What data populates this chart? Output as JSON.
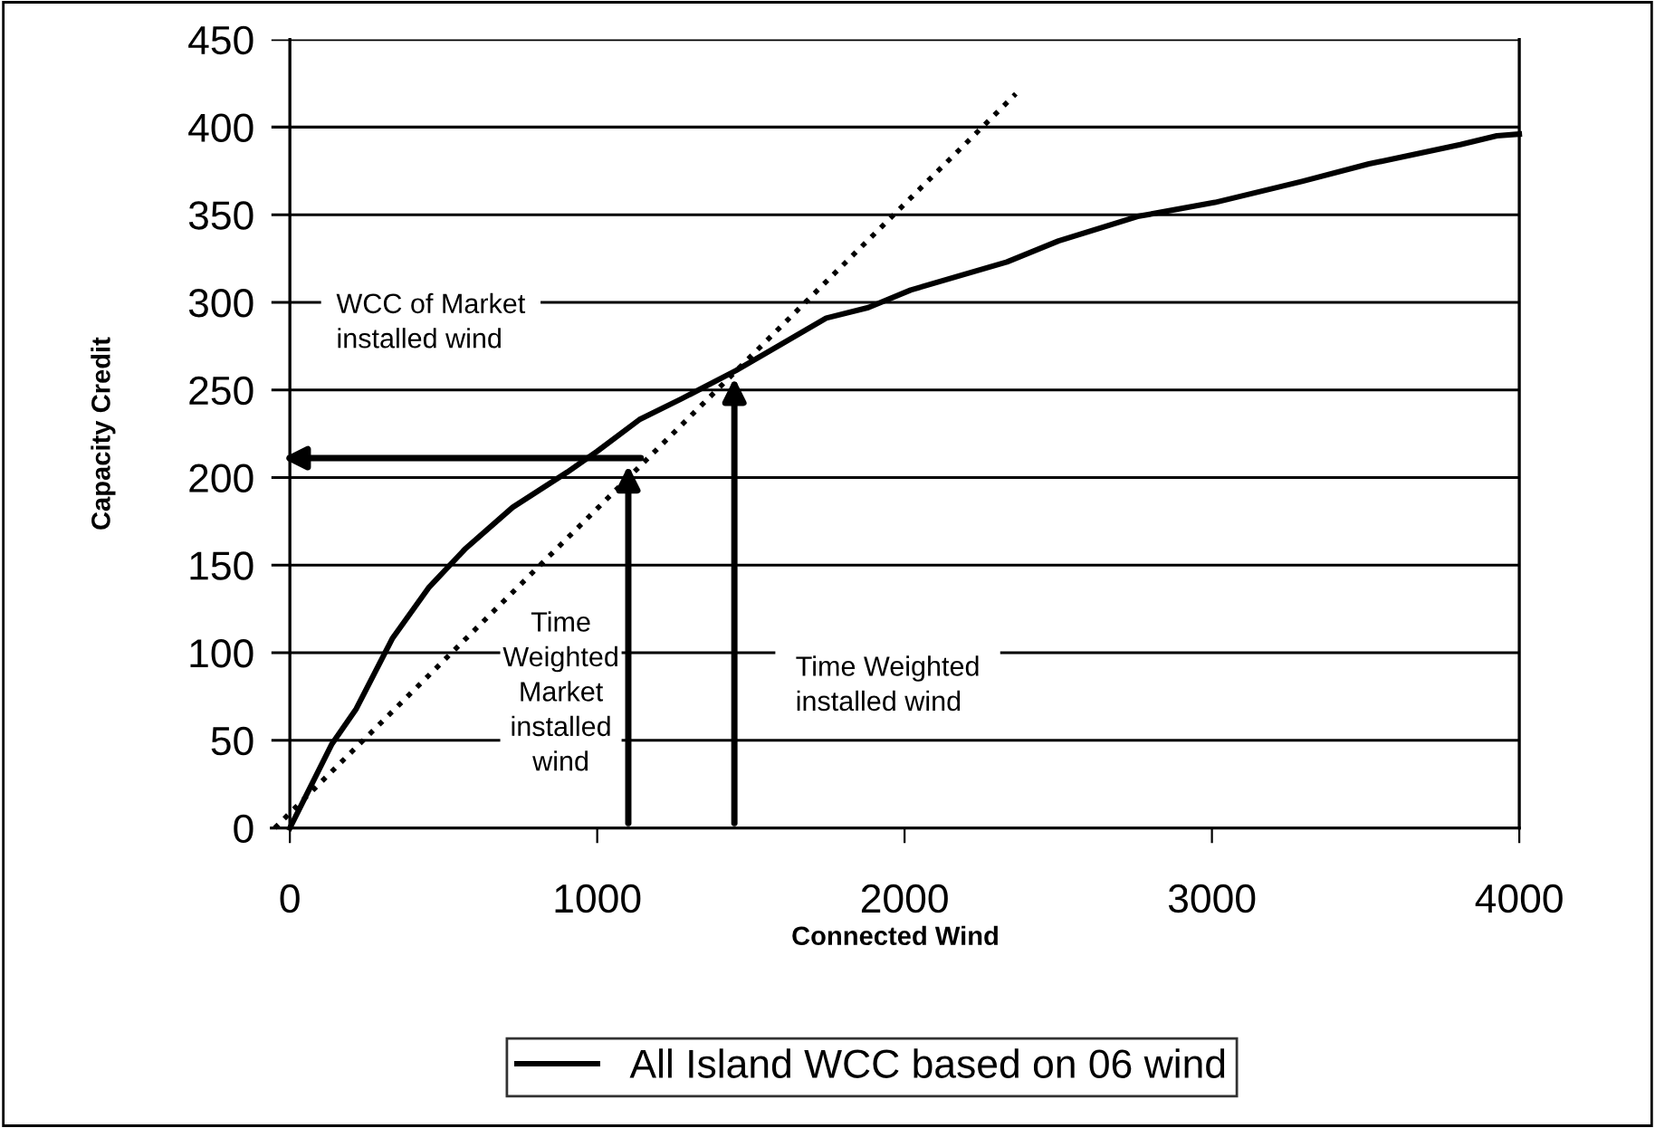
{
  "chart_data": {
    "type": "line",
    "xlabel": "Connected Wind",
    "ylabel": "Capacity Credit",
    "series": [
      {
        "name": "All Island WCC based on 06 wind",
        "color": "#000000",
        "line_style": "solid",
        "x": [
          0,
          137,
          216,
          333,
          451,
          569,
          725,
          902,
          1000,
          1137,
          1275,
          1451,
          1588,
          1745,
          1882,
          2020,
          2176,
          2333,
          2501,
          2758,
          3010,
          3293,
          3511,
          3808,
          3927,
          4000
        ],
        "values": [
          0,
          48,
          68,
          108,
          137,
          159,
          183,
          203,
          215,
          233,
          245,
          261,
          275,
          291,
          297,
          307,
          315,
          323,
          335,
          349,
          357,
          369,
          379,
          390,
          395,
          396
        ]
      },
      {
        "color": "#000000",
        "line_style": "dotted",
        "x": [
          -49,
          2362
        ],
        "values": [
          0,
          419
        ]
      }
    ],
    "annotations": [
      "WCC of Market\ninstalled wind",
      "Time\nWeighted\nMarket\ninstalled\nwind",
      "Time Weighted\ninstalled wind"
    ],
    "xlim": [
      -60,
      4000
    ],
    "xticks": [
      0,
      1000,
      2000,
      3000,
      4000
    ],
    "ylim": [
      0,
      450
    ],
    "yticks": [
      0,
      50,
      100,
      150,
      200,
      250,
      300,
      350,
      400,
      450
    ],
    "grid": "y",
    "legend": "bottom",
    "marker": "none"
  }
}
